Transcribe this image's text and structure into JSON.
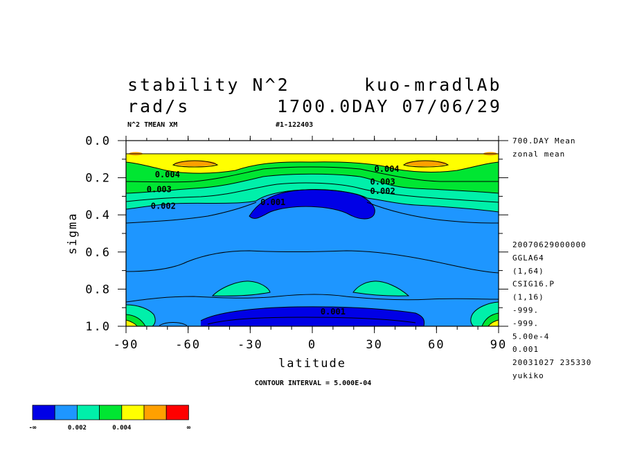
{
  "header": {
    "title_left": "stability N^2",
    "title_right": "kuo-mradlAb",
    "units": "rad/s",
    "time_label": "1700.0DAY 07/06/29",
    "var_desc": "N^2 TMEAN XM",
    "run_id": "#1-122403"
  },
  "side_info": {
    "lines": [
      "700.DAY Mean",
      "zonal mean",
      "20070629000000",
      "GGLA64",
      "(1,64)",
      "CSIG16.P",
      "(1,16)",
      "-999.",
      "-999.",
      "5.00e-4",
      "0.001",
      "20031027 235330",
      "yukiko"
    ]
  },
  "contour_interval_label": "CONTOUR INTERVAL = 5.000E-04",
  "colorbar": {
    "colors": [
      "#0000e6",
      "#1e96ff",
      "#00f0aa",
      "#00e632",
      "#ffff00",
      "#ffa000",
      "#ff0000"
    ],
    "labels": [
      "-∞",
      "0.002",
      "0.004",
      "∞"
    ]
  },
  "chart_data": {
    "type": "contour",
    "title": "stability N^2",
    "xlabel": "latitude",
    "ylabel": "sigma",
    "xlim": [
      -90,
      90
    ],
    "ylim": [
      1.0,
      0.0
    ],
    "x_ticks": [
      "-90",
      "-60",
      "-30",
      "0",
      "30",
      "60",
      "90"
    ],
    "y_ticks": [
      "0.0",
      "0.2",
      "0.4",
      "0.6",
      "0.8",
      "1.0"
    ],
    "contour_interval": 0.0005,
    "contour_labels": [
      {
        "text": "0.004",
        "lat": -70,
        "sigma": 0.19
      },
      {
        "text": "0.003",
        "lat": -74,
        "sigma": 0.27
      },
      {
        "text": "0.002",
        "lat": -72,
        "sigma": 0.36
      },
      {
        "text": "0.001",
        "lat": -19,
        "sigma": 0.34
      },
      {
        "text": "0.004",
        "lat": 36,
        "sigma": 0.16
      },
      {
        "text": "0.003",
        "lat": 34,
        "sigma": 0.23
      },
      {
        "text": "0.002",
        "lat": 34,
        "sigma": 0.28
      },
      {
        "text": "0.001",
        "lat": 10,
        "sigma": 0.93
      }
    ],
    "levels_color_map": [
      {
        "range": "< 0.001",
        "color": "#0000e6"
      },
      {
        "range": "0.001-0.002",
        "color": "#1e96ff"
      },
      {
        "range": "0.002-0.003",
        "color": "#00f0aa"
      },
      {
        "range": "0.003-0.004",
        "color": "#00e632"
      },
      {
        "range": "0.004-0.005",
        "color": "#ffff00"
      },
      {
        "range": "0.005-0.006",
        "color": "#ffa000"
      },
      {
        "range": "> 0.006",
        "color": "#ff0000"
      }
    ]
  }
}
